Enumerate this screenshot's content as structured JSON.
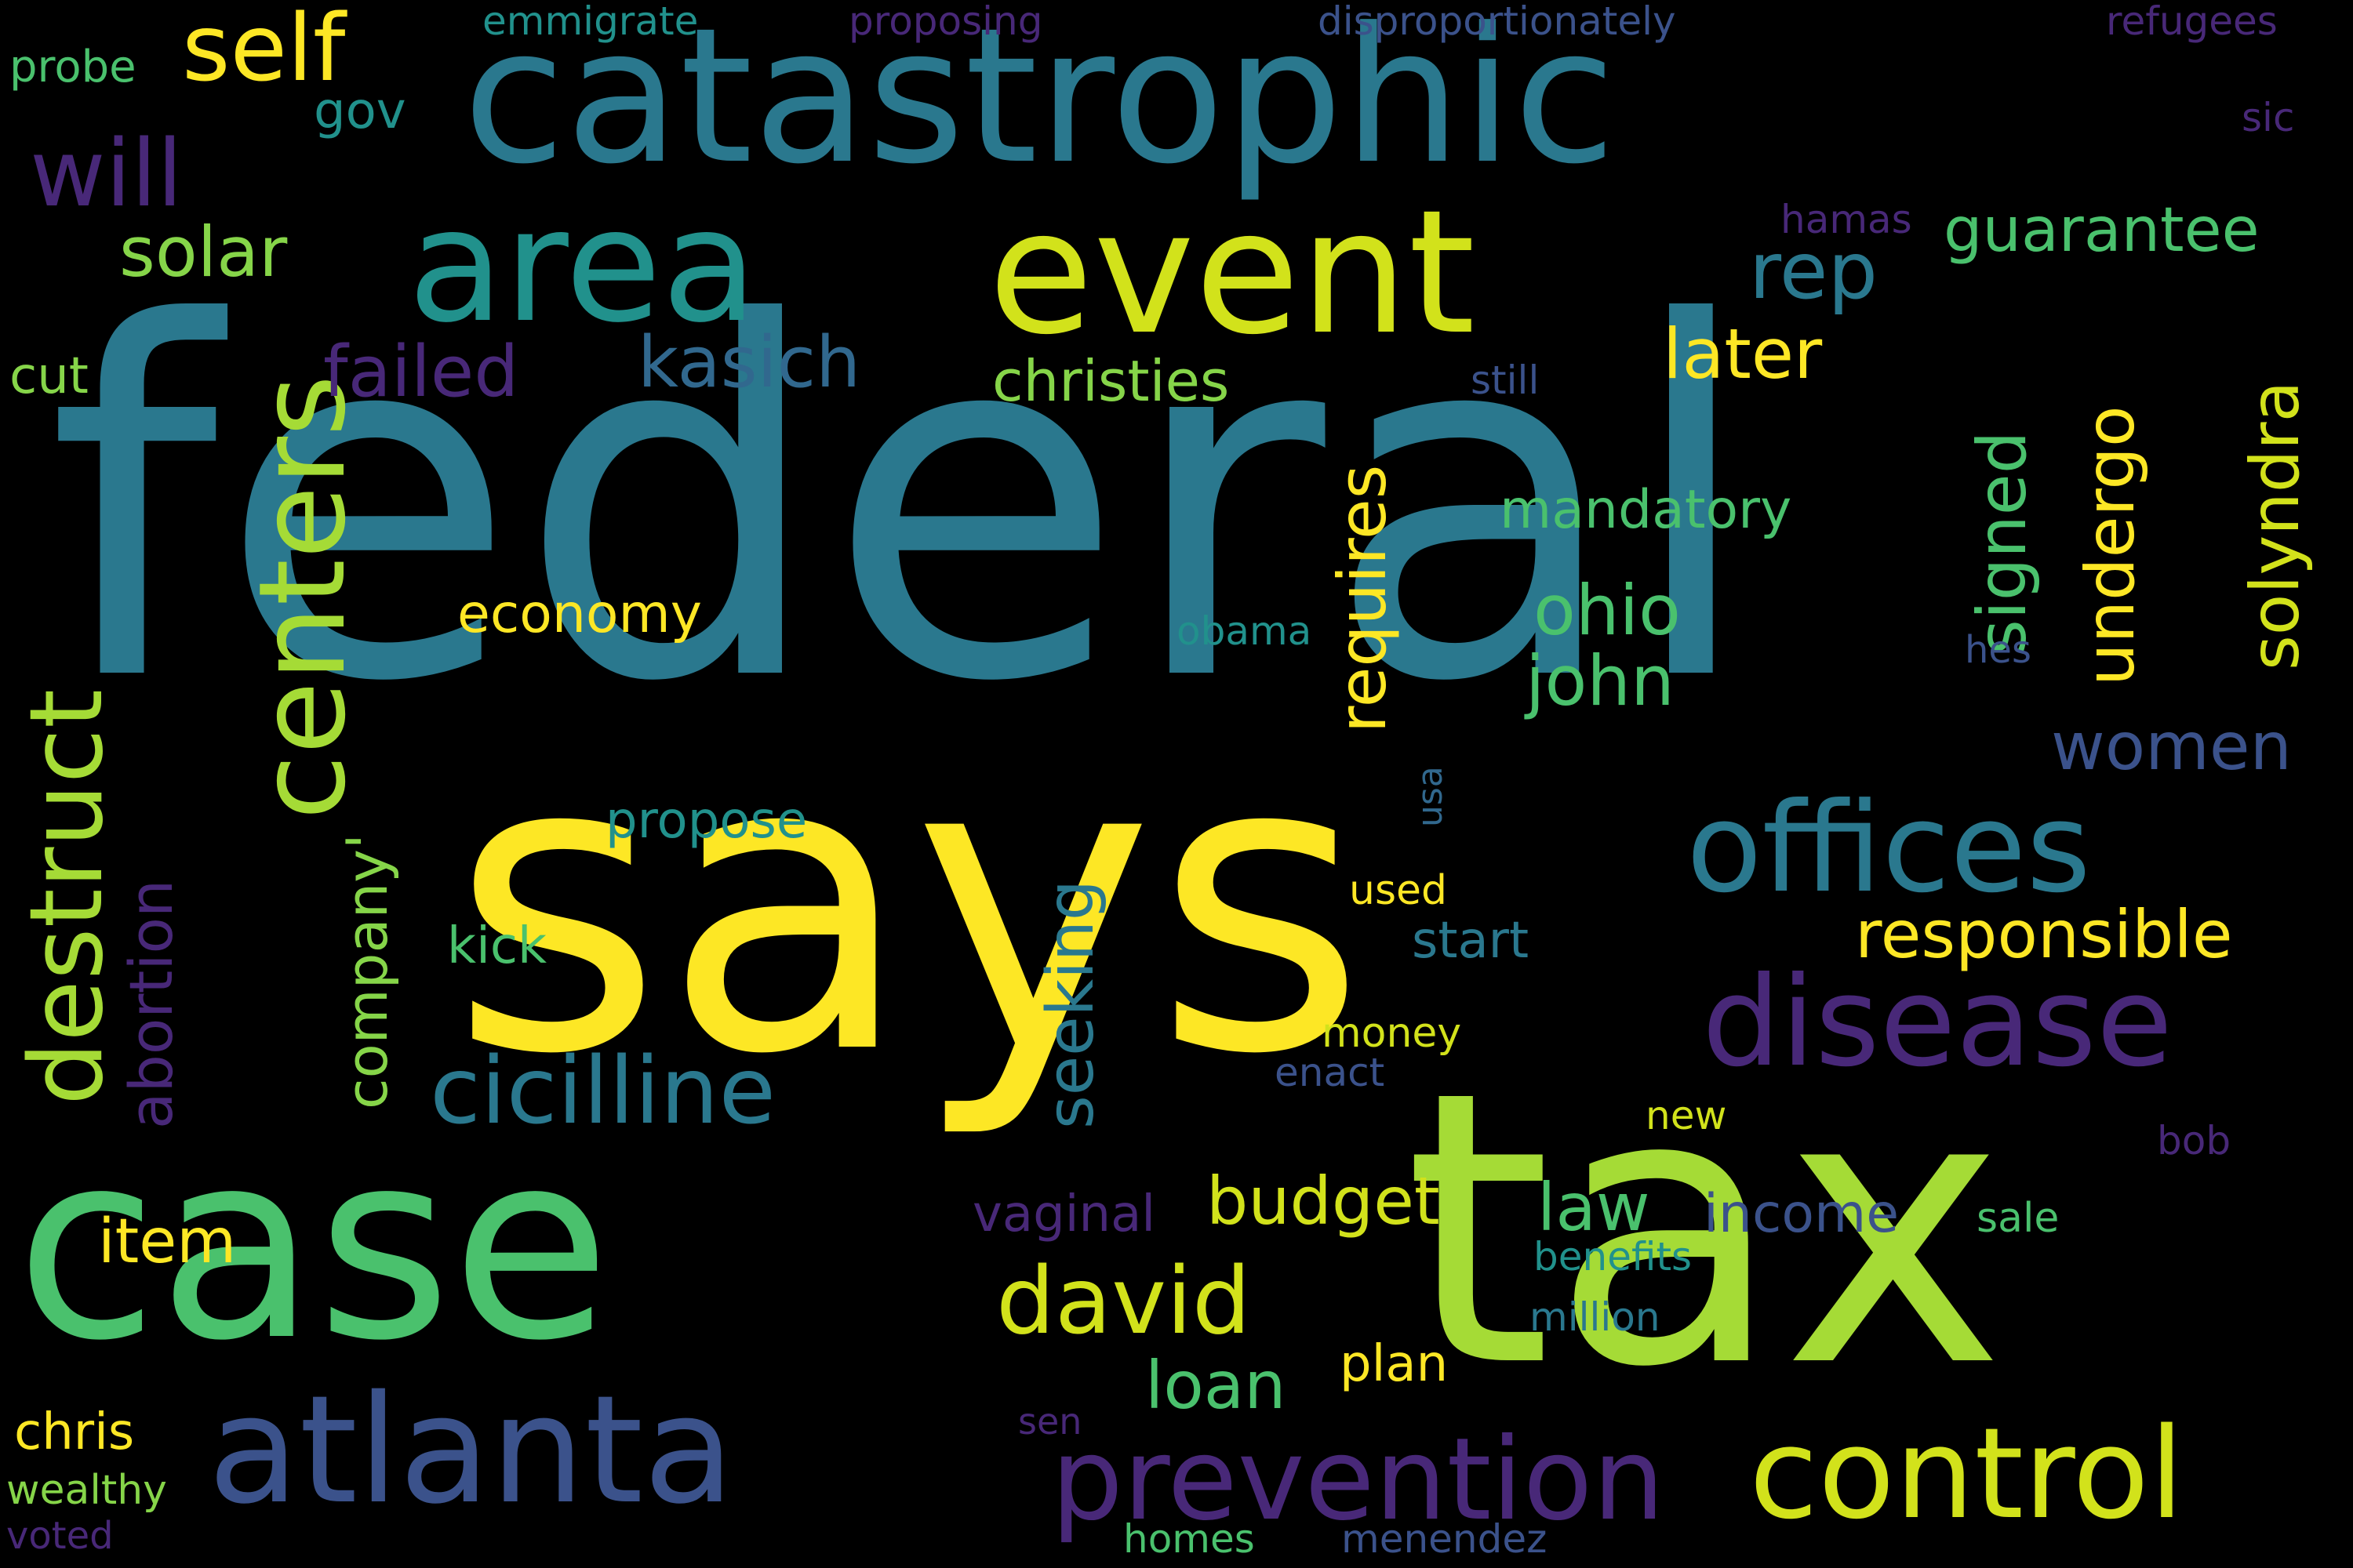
{
  "background": "#000000",
  "palette": "viridis",
  "words": [
    {
      "text": "federal",
      "color": "#2a788e"
    },
    {
      "text": "says",
      "color": "#fde725"
    },
    {
      "text": "tax",
      "color": "#a5db36"
    },
    {
      "text": "case",
      "color": "#4ac16d"
    },
    {
      "text": "catastrophic",
      "color": "#2a788e"
    },
    {
      "text": "event",
      "color": "#d2e21b"
    },
    {
      "text": "area",
      "color": "#21918c"
    },
    {
      "text": "atlanta",
      "color": "#3b528b"
    },
    {
      "text": "control",
      "color": "#d2e21b"
    },
    {
      "text": "disease",
      "color": "#482878"
    },
    {
      "text": "prevention",
      "color": "#482878"
    },
    {
      "text": "offices",
      "color": "#2a788e"
    },
    {
      "text": "centers",
      "color": "#a5db36"
    },
    {
      "text": "destruct",
      "color": "#a5db36"
    },
    {
      "text": "cicilline",
      "color": "#2a788e"
    },
    {
      "text": "david",
      "color": "#d2e21b"
    },
    {
      "text": "self",
      "color": "#fde725"
    },
    {
      "text": "will",
      "color": "#482878"
    },
    {
      "text": "rep",
      "color": "#2a788e"
    },
    {
      "text": "guarantee",
      "color": "#4ac16d"
    },
    {
      "text": "kasich",
      "color": "#31688e"
    },
    {
      "text": "failed",
      "color": "#482878"
    },
    {
      "text": "solar",
      "color": "#86d549"
    },
    {
      "text": "later",
      "color": "#fde725"
    },
    {
      "text": "christies",
      "color": "#86d549"
    },
    {
      "text": "responsible",
      "color": "#fde725"
    },
    {
      "text": "women",
      "color": "#3b528b"
    },
    {
      "text": "ohio",
      "color": "#4ac16d"
    },
    {
      "text": "john",
      "color": "#4ac16d"
    },
    {
      "text": "requires",
      "color": "#fde725"
    },
    {
      "text": "signed",
      "color": "#4ac16d"
    },
    {
      "text": "undergo",
      "color": "#fde725"
    },
    {
      "text": "solyndra",
      "color": "#d2e21b"
    },
    {
      "text": "abortion",
      "color": "#482878"
    },
    {
      "text": "company'",
      "color": "#86d549"
    },
    {
      "text": "seeking",
      "color": "#2a788e"
    },
    {
      "text": "budget",
      "color": "#d2e21b"
    },
    {
      "text": "item",
      "color": "#fde725"
    },
    {
      "text": "loan",
      "color": "#4ac16d"
    },
    {
      "text": "law",
      "color": "#4ac16d"
    },
    {
      "text": "income",
      "color": "#3b528b"
    },
    {
      "text": "mandatory",
      "color": "#4ac16d"
    },
    {
      "text": "economy",
      "color": "#fde725"
    },
    {
      "text": "propose",
      "color": "#21918c"
    },
    {
      "text": "kick",
      "color": "#4ac16d"
    },
    {
      "text": "start",
      "color": "#2a788e"
    },
    {
      "text": "plan",
      "color": "#fde725"
    },
    {
      "text": "vaginal",
      "color": "#482878"
    },
    {
      "text": "gov",
      "color": "#21918c"
    },
    {
      "text": "cut",
      "color": "#86d549"
    },
    {
      "text": "probe",
      "color": "#4ac16d"
    },
    {
      "text": "emmigrate",
      "color": "#21918c"
    },
    {
      "text": "proposing",
      "color": "#482878"
    },
    {
      "text": "disproportionately",
      "color": "#3b528b"
    },
    {
      "text": "refugees",
      "color": "#482878"
    },
    {
      "text": "sic",
      "color": "#482878"
    },
    {
      "text": "hamas",
      "color": "#482878"
    },
    {
      "text": "still",
      "color": "#3b528b"
    },
    {
      "text": "obama",
      "color": "#21918c"
    },
    {
      "text": "hes",
      "color": "#3b528b"
    },
    {
      "text": "usa",
      "color": "#31688e"
    },
    {
      "text": "used",
      "color": "#fde725"
    },
    {
      "text": "money",
      "color": "#d2e21b"
    },
    {
      "text": "enact",
      "color": "#3b528b"
    },
    {
      "text": "new",
      "color": "#d2e21b"
    },
    {
      "text": "bob",
      "color": "#482878"
    },
    {
      "text": "sale",
      "color": "#4ac16d"
    },
    {
      "text": "benefits",
      "color": "#21918c"
    },
    {
      "text": "million",
      "color": "#2a788e"
    },
    {
      "text": "chris",
      "color": "#fde725"
    },
    {
      "text": "wealthy",
      "color": "#86d549"
    },
    {
      "text": "voted",
      "color": "#482878"
    },
    {
      "text": "sen",
      "color": "#482878"
    },
    {
      "text": "homes",
      "color": "#4ac16d"
    },
    {
      "text": "menendez",
      "color": "#3b528b"
    }
  ]
}
